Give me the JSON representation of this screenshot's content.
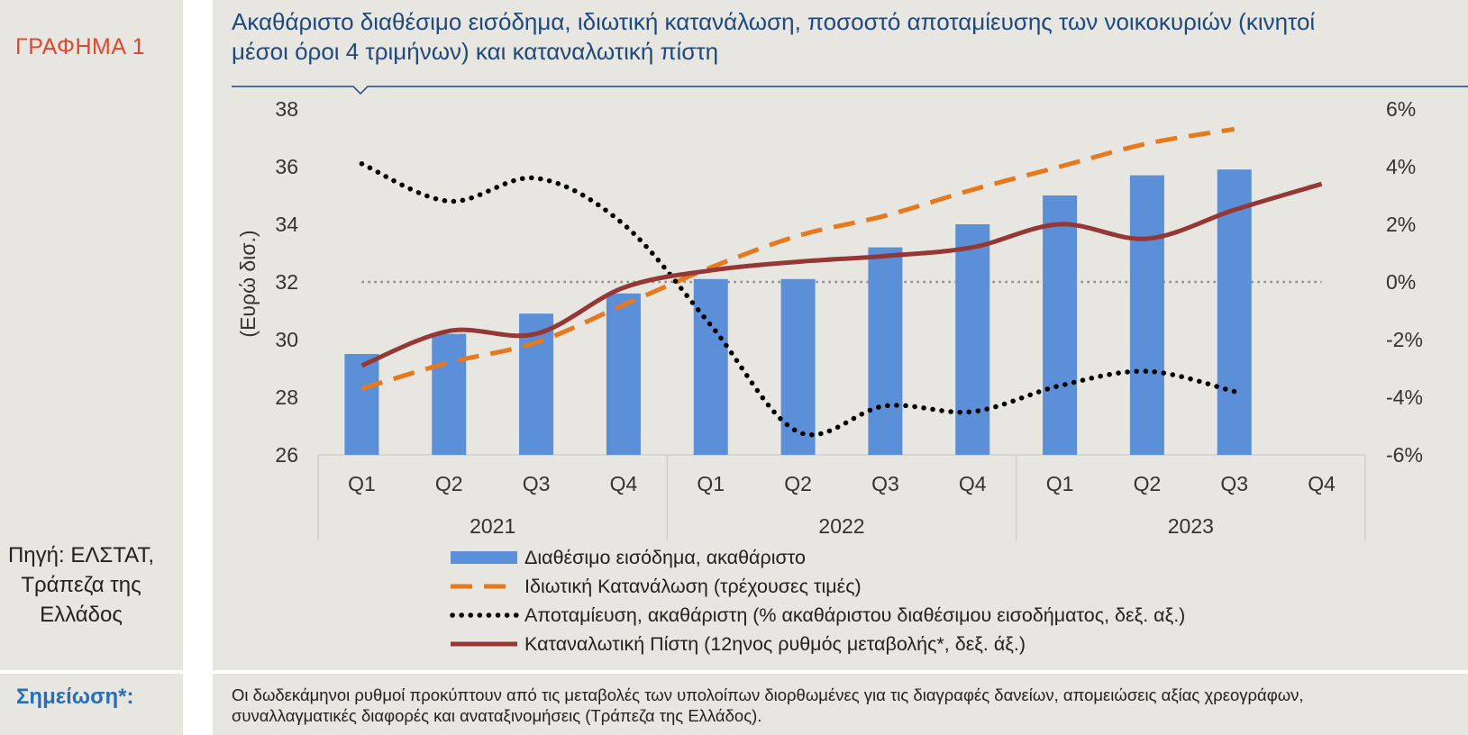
{
  "figure_label": "ΓΡΑΦΗΜΑ 1",
  "title_line1": "Ακαθάριστο διαθέσιμο εισόδημα, ιδιωτική κατανάλωση, ποσοστό αποταμίευσης των νοικοκυριών (κινητοί",
  "title_line2": "μέσοι όροι 4 τριμήνων) και καταναλωτική πίστη",
  "source_line1": "Πηγή: ΕΛΣΤΑΤ,",
  "source_line2": "Τράπεζα της",
  "source_line3": "Ελλάδος",
  "note_label": "Σημείωση*:",
  "note_line1": "Οι δωδεκάμηνοι ρυθμοί προκύπτουν από τις μεταβολές των υπολοίπων διορθωμένες για τις διαγραφές δανείων, απομειώσεις αξίας χρεογράφων,",
  "note_line2": "συναλλαγματικές διαφορές και αναταξινομήσεις (Τράπεζα της Ελλάδος).",
  "colors": {
    "bar": "#5b8fd8",
    "consumption": "#e7781c",
    "savings": "#000000",
    "credit": "#953735",
    "title": "#1f497d",
    "label": "#e0482c"
  },
  "chart_data": {
    "type": "bar+line",
    "ylabel": "(Ευρώ δισ.)",
    "ylim": [
      26,
      38
    ],
    "yticks": [
      38,
      36,
      34,
      32,
      30,
      28,
      26
    ],
    "ytick_labels": [
      "38",
      "36",
      "34",
      "32",
      "30",
      "28",
      "26"
    ],
    "y2lim": [
      -6,
      6
    ],
    "y2ticks": [
      6,
      4,
      2,
      0,
      -2,
      -4,
      -6
    ],
    "y2tick_labels": [
      "6%",
      "4%",
      "2%",
      "0%",
      "-2%",
      "-4%",
      "-6%"
    ],
    "quarters": [
      "Q1",
      "Q2",
      "Q3",
      "Q4",
      "Q1",
      "Q2",
      "Q3",
      "Q4",
      "Q1",
      "Q2",
      "Q3",
      "Q4"
    ],
    "years": [
      "2021",
      "2022",
      "2023"
    ],
    "series": [
      {
        "name": "Διαθέσιμο εισόδημα, ακαθάριστο",
        "type": "bar",
        "axis": "left",
        "values": [
          29.5,
          30.2,
          30.9,
          31.6,
          32.1,
          32.1,
          33.2,
          34.0,
          35.0,
          35.7,
          35.9,
          null
        ]
      },
      {
        "name": "Ιδιωτική Κατανάλωση (τρέχουσες τιμές)",
        "type": "line-dashed",
        "axis": "left",
        "values": [
          28.3,
          29.2,
          29.9,
          31.2,
          32.5,
          33.6,
          34.3,
          35.2,
          36.0,
          36.8,
          37.3,
          null
        ]
      },
      {
        "name": "Αποταμίευση, ακαθάριστη (% ακαθάριστου διαθέσιμου εισοδήματος, δεξ. αξ.)",
        "type": "line-dotted",
        "axis": "right",
        "values": [
          4.1,
          2.8,
          3.6,
          2.0,
          -1.5,
          -5.2,
          -4.3,
          -4.5,
          -3.6,
          -3.1,
          -3.8,
          null
        ]
      },
      {
        "name": "Καταναλωτική Πίστη (12ηνος ρυθμός μεταβολής*, δεξ. άξ.)",
        "type": "line",
        "axis": "right",
        "values": [
          -2.9,
          -1.7,
          -1.8,
          -0.2,
          0.4,
          0.7,
          0.9,
          1.2,
          2.0,
          1.5,
          2.5,
          3.4
        ]
      }
    ]
  }
}
